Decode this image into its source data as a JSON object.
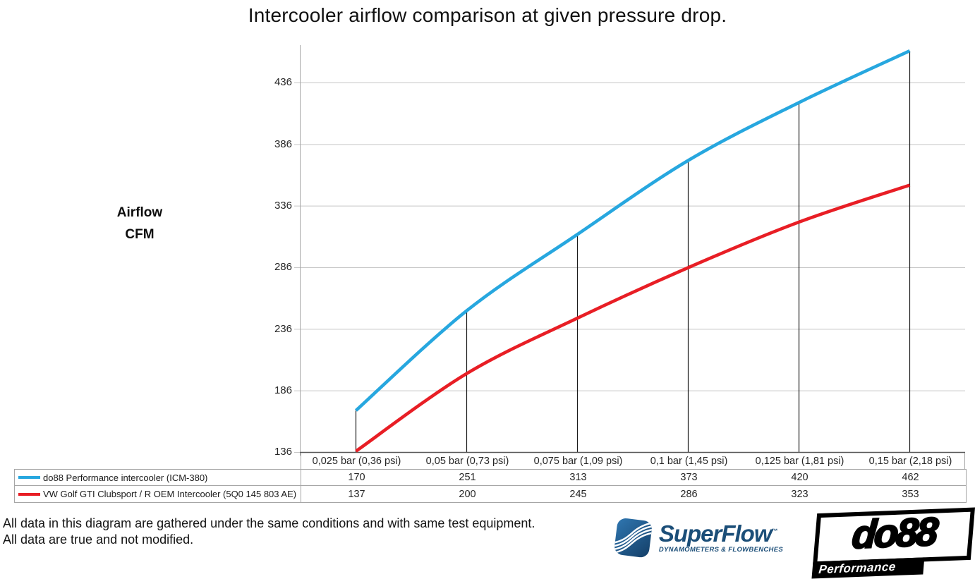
{
  "page": {
    "title": "Intercooler airflow comparison at given pressure drop."
  },
  "chart_data": {
    "type": "line",
    "title": "Intercooler airflow comparison at given pressure drop.",
    "ylabel_line1": "Airflow",
    "ylabel_line2": "CFM",
    "yticks": [
      436,
      386,
      336,
      286,
      236,
      186,
      136
    ],
    "ylim": [
      136,
      466
    ],
    "grid": true,
    "legend_position": "bottom-table",
    "categories": [
      "0,025 bar (0,36 psi)",
      "0,05 bar (0,73 psi)",
      "0,075 bar (1,09 psi)",
      "0,1 bar (1,45 psi)",
      "0,125 bar (1,81 psi)",
      "0,15 bar (2,18 psi)"
    ],
    "series": [
      {
        "name": "do88 Performance intercooler (ICM-380)",
        "color": "#27a7df",
        "values": [
          170,
          251,
          313,
          373,
          420,
          462
        ]
      },
      {
        "name": "VW Golf GTI Clubsport / R OEM Intercooler (5Q0 145 803 AE)",
        "color": "#e81e25",
        "values": [
          137,
          200,
          245,
          286,
          323,
          353
        ]
      }
    ]
  },
  "footer": {
    "line1": "All data in this diagram are gathered under the same conditions and with same test equipment.",
    "line2": "All data are true and not modified."
  },
  "logos": {
    "superflow": {
      "wordmark": "SuperFlow",
      "trademark": "™",
      "tagline": "DYNAMOMETERS & FLOWBENCHES",
      "color": "#1b4e78"
    },
    "do88": {
      "wordmark": "do88",
      "tagline": "Performance"
    }
  },
  "colors": {
    "grid": "#c6c6c6",
    "axis_y": "#a6a6a6",
    "axis_x": "#595959",
    "dropline": "#1a1a1a",
    "table_border": "#a6a6a6",
    "series_blue": "#27a7df",
    "series_red": "#e81e25"
  }
}
